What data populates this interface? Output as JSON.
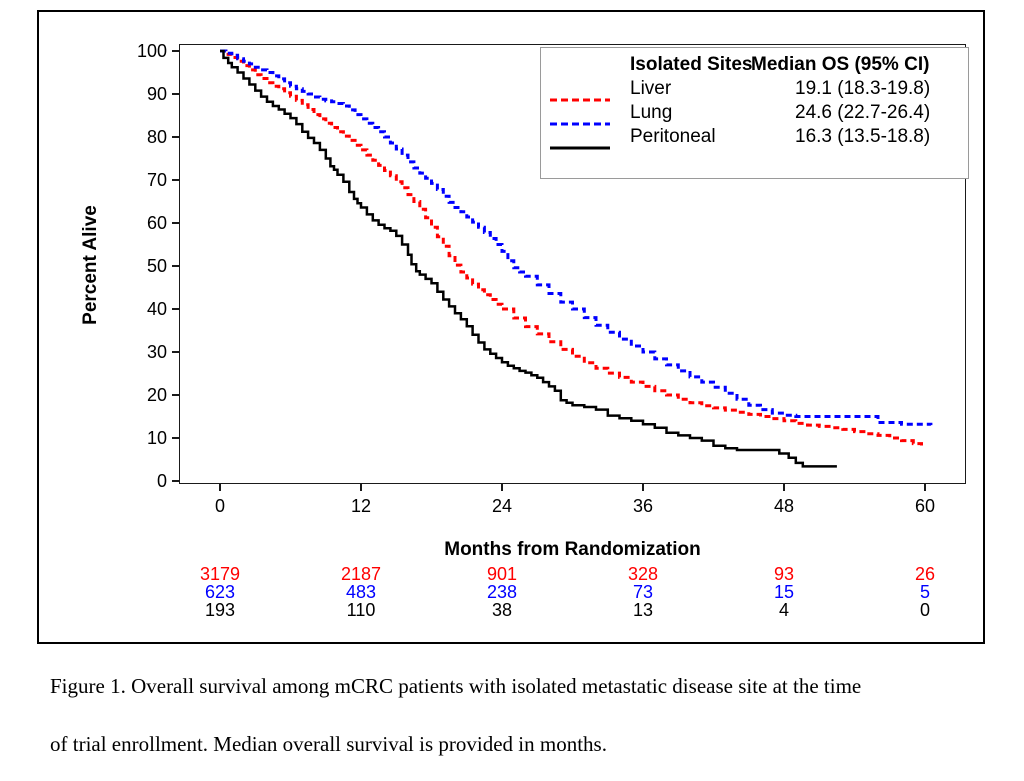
{
  "figure": {
    "y_axis_title": "Percent Alive",
    "x_axis_title": "Months from Randomization",
    "caption_line1": "Figure 1. Overall survival among mCRC patients with isolated metastatic disease site at the time",
    "caption_line2": "of trial enrollment. Median overall survival is provided in months."
  },
  "legend": {
    "col1_header": "Isolated Sites",
    "col2_header": "Median OS (95% CI)",
    "rows": [
      {
        "label": "Liver",
        "value": "19.1 (18.3-19.8)",
        "color": "#ff0000",
        "dash": "7,4"
      },
      {
        "label": "Lung",
        "value": "24.6 (22.7-26.4)",
        "color": "#0000ff",
        "dash": "7,4"
      },
      {
        "label": "Peritoneal",
        "value": "16.3 (13.5-18.8)",
        "color": "#000000",
        "dash": null
      }
    ]
  },
  "at_risk": {
    "rows": [
      {
        "group": "Liver",
        "color": "#ff0000",
        "values": [
          3179,
          2187,
          901,
          328,
          93,
          26
        ]
      },
      {
        "group": "Lung",
        "color": "#0000ff",
        "values": [
          623,
          483,
          238,
          73,
          15,
          5
        ]
      },
      {
        "group": "Peritoneal",
        "color": "#000000",
        "values": [
          193,
          110,
          38,
          13,
          4,
          0
        ]
      }
    ]
  },
  "chart_data": {
    "type": "line",
    "subtype": "kaplan-meier-step",
    "title": "",
    "xlabel": "Months from Randomization",
    "ylabel": "Percent Alive",
    "xlim": [
      0,
      60
    ],
    "ylim": [
      0,
      100
    ],
    "x_ticks": [
      0,
      12,
      24,
      36,
      48,
      60
    ],
    "y_ticks": [
      0,
      10,
      20,
      30,
      40,
      50,
      60,
      70,
      80,
      90,
      100
    ],
    "grid": false,
    "legend_position": "top-right",
    "series": [
      {
        "name": "Liver",
        "color": "#ff0000",
        "dash": "6,4",
        "stroke_width": 3,
        "median_os": 19.1,
        "ci_95": "18.3-19.8",
        "points": [
          [
            0,
            100
          ],
          [
            0.5,
            99.2
          ],
          [
            1,
            98.5
          ],
          [
            1.5,
            97.6
          ],
          [
            2,
            96.6
          ],
          [
            2.5,
            95.6
          ],
          [
            3,
            94.5
          ],
          [
            3.5,
            93.6
          ],
          [
            4,
            92.6
          ],
          [
            4.5,
            91.8
          ],
          [
            5,
            91.2
          ],
          [
            5.5,
            90.3
          ],
          [
            6,
            89.5
          ],
          [
            6.5,
            88.5
          ],
          [
            7,
            87.5
          ],
          [
            7.5,
            86.4
          ],
          [
            8,
            85.2
          ],
          [
            8.5,
            84.2
          ],
          [
            9,
            83.2
          ],
          [
            9.5,
            82.2
          ],
          [
            10,
            81.2
          ],
          [
            10.5,
            80.2
          ],
          [
            11,
            79.2
          ],
          [
            11.5,
            78.1
          ],
          [
            12,
            77
          ],
          [
            12.5,
            75.8
          ],
          [
            13,
            74.6
          ],
          [
            13.5,
            73.4
          ],
          [
            14,
            72.2
          ],
          [
            14.5,
            71
          ],
          [
            15,
            69.6
          ],
          [
            15.5,
            68.2
          ],
          [
            16,
            66.6
          ],
          [
            16.5,
            65
          ],
          [
            17,
            63.2
          ],
          [
            17.5,
            61.2
          ],
          [
            18,
            59
          ],
          [
            18.5,
            56.8
          ],
          [
            19,
            54.6
          ],
          [
            19.5,
            52.4
          ],
          [
            20,
            50.2
          ],
          [
            20.5,
            48.6
          ],
          [
            21,
            47.2
          ],
          [
            21.5,
            45.8
          ],
          [
            22,
            44.5
          ],
          [
            22.5,
            43.3
          ],
          [
            23,
            42.2
          ],
          [
            23.5,
            41.1
          ],
          [
            24,
            40
          ],
          [
            25,
            37.9
          ],
          [
            26,
            35.9
          ],
          [
            27,
            34.2
          ],
          [
            28,
            32.4
          ],
          [
            29,
            30.6
          ],
          [
            30,
            29
          ],
          [
            31,
            27.5
          ],
          [
            32,
            26.2
          ],
          [
            33,
            25.1
          ],
          [
            34,
            24.1
          ],
          [
            35,
            23
          ],
          [
            36,
            22
          ],
          [
            37,
            21
          ],
          [
            38,
            20
          ],
          [
            39,
            19
          ],
          [
            40,
            18.2
          ],
          [
            41,
            17.5
          ],
          [
            42,
            17
          ],
          [
            43,
            16.5
          ],
          [
            44,
            16
          ],
          [
            45,
            15.5
          ],
          [
            46,
            15
          ],
          [
            47,
            14.5
          ],
          [
            48,
            14
          ],
          [
            49,
            13.4
          ],
          [
            50,
            13
          ],
          [
            51,
            12.7
          ],
          [
            52,
            12.4
          ],
          [
            53,
            12
          ],
          [
            54,
            11.5
          ],
          [
            55,
            11
          ],
          [
            56,
            10.6
          ],
          [
            57,
            10
          ],
          [
            58,
            9.4
          ],
          [
            59,
            8.7
          ],
          [
            59.7,
            8.2
          ]
        ]
      },
      {
        "name": "Lung",
        "color": "#0000ff",
        "dash": "6,4",
        "stroke_width": 3,
        "median_os": 24.6,
        "ci_95": "22.7-26.4",
        "points": [
          [
            0,
            100
          ],
          [
            0.5,
            99.5
          ],
          [
            1,
            99
          ],
          [
            1.5,
            98.2
          ],
          [
            2,
            97.6
          ],
          [
            2.5,
            97
          ],
          [
            3,
            96.2
          ],
          [
            3.5,
            95.6
          ],
          [
            4,
            95
          ],
          [
            4.5,
            94.2
          ],
          [
            5,
            93.5
          ],
          [
            5.5,
            92.6
          ],
          [
            6,
            91.8
          ],
          [
            6.5,
            91.2
          ],
          [
            7,
            90.6
          ],
          [
            7.5,
            90
          ],
          [
            8,
            89.3
          ],
          [
            8.5,
            88.8
          ],
          [
            9,
            88.4
          ],
          [
            9.5,
            88.2
          ],
          [
            10,
            87.8
          ],
          [
            10.5,
            87.2
          ],
          [
            11,
            86.3
          ],
          [
            11.5,
            85.2
          ],
          [
            12,
            84.2
          ],
          [
            12.5,
            83.2
          ],
          [
            13,
            82.2
          ],
          [
            13.5,
            81.2
          ],
          [
            14,
            80
          ],
          [
            14.5,
            78.6
          ],
          [
            15,
            77.2
          ],
          [
            15.5,
            75.8
          ],
          [
            16,
            74.2
          ],
          [
            16.5,
            72.8
          ],
          [
            17,
            71.6
          ],
          [
            17.5,
            70.4
          ],
          [
            18,
            69.2
          ],
          [
            18.5,
            67.8
          ],
          [
            19,
            66.2
          ],
          [
            19.5,
            64.8
          ],
          [
            20,
            63.6
          ],
          [
            20.5,
            62.6
          ],
          [
            21,
            61.4
          ],
          [
            21.5,
            60.2
          ],
          [
            22,
            59
          ],
          [
            22.5,
            57.8
          ],
          [
            23,
            56.4
          ],
          [
            23.5,
            55
          ],
          [
            24,
            53.4
          ],
          [
            24.5,
            51.2
          ],
          [
            25,
            49.6
          ],
          [
            25.5,
            48.6
          ],
          [
            26,
            47.6
          ],
          [
            27,
            45.6
          ],
          [
            28,
            43.6
          ],
          [
            29,
            41.6
          ],
          [
            30,
            40
          ],
          [
            31,
            38
          ],
          [
            32,
            36.2
          ],
          [
            33,
            34.6
          ],
          [
            34,
            33
          ],
          [
            35,
            31.4
          ],
          [
            36,
            30
          ],
          [
            37,
            28.4
          ],
          [
            38,
            27
          ],
          [
            39,
            25.6
          ],
          [
            40,
            24.2
          ],
          [
            41,
            23
          ],
          [
            42,
            21.8
          ],
          [
            43,
            20.4
          ],
          [
            44,
            19
          ],
          [
            45,
            17.6
          ],
          [
            46,
            16.6
          ],
          [
            47,
            15.8
          ],
          [
            48,
            15.3
          ],
          [
            49,
            15
          ],
          [
            55.5,
            15
          ],
          [
            56,
            13.6
          ],
          [
            58,
            13.2
          ],
          [
            60.5,
            13
          ]
        ]
      },
      {
        "name": "Peritoneal",
        "color": "#000000",
        "dash": null,
        "stroke_width": 2.5,
        "median_os": 16.3,
        "ci_95": "13.5-18.8",
        "points": [
          [
            0,
            100
          ],
          [
            0.3,
            98.4
          ],
          [
            0.7,
            97.2
          ],
          [
            1,
            96.2
          ],
          [
            1.5,
            95
          ],
          [
            2,
            93.6
          ],
          [
            2.5,
            92.2
          ],
          [
            3,
            90.8
          ],
          [
            3.5,
            89.4
          ],
          [
            4,
            88.2
          ],
          [
            4.5,
            87.2
          ],
          [
            5,
            86.4
          ],
          [
            5.5,
            85.4
          ],
          [
            6,
            84.4
          ],
          [
            6.5,
            83
          ],
          [
            7,
            81.2
          ],
          [
            7.5,
            79.8
          ],
          [
            8,
            78.6
          ],
          [
            8.5,
            77
          ],
          [
            9,
            75
          ],
          [
            9.4,
            73.2
          ],
          [
            9.7,
            72.4
          ],
          [
            10,
            71.2
          ],
          [
            10.5,
            69.6
          ],
          [
            11,
            67.2
          ],
          [
            11.4,
            65.6
          ],
          [
            11.7,
            64.6
          ],
          [
            12,
            63.6
          ],
          [
            12.5,
            62
          ],
          [
            13,
            60.6
          ],
          [
            13.5,
            59.6
          ],
          [
            14,
            58.8
          ],
          [
            14.5,
            58.2
          ],
          [
            15,
            57
          ],
          [
            15.5,
            55
          ],
          [
            16,
            52.6
          ],
          [
            16.3,
            50.4
          ],
          [
            16.7,
            48.8
          ],
          [
            17,
            48
          ],
          [
            17.5,
            47
          ],
          [
            18,
            46
          ],
          [
            18.5,
            44
          ],
          [
            19,
            42.2
          ],
          [
            19.5,
            40.6
          ],
          [
            20,
            39
          ],
          [
            20.5,
            37.6
          ],
          [
            21,
            36
          ],
          [
            21.5,
            34
          ],
          [
            22,
            32.2
          ],
          [
            22.5,
            30.6
          ],
          [
            23,
            29.6
          ],
          [
            23.5,
            28.6
          ],
          [
            24,
            27.6
          ],
          [
            24.5,
            26.8
          ],
          [
            25,
            26.2
          ],
          [
            25.5,
            25.6
          ],
          [
            26,
            25.2
          ],
          [
            26.5,
            24.6
          ],
          [
            27,
            24
          ],
          [
            27.5,
            23
          ],
          [
            28,
            22
          ],
          [
            28.5,
            21
          ],
          [
            29,
            18.8
          ],
          [
            29.5,
            18.2
          ],
          [
            30,
            17.6
          ],
          [
            31,
            17.2
          ],
          [
            32,
            16.6
          ],
          [
            33,
            15.2
          ],
          [
            34,
            14.6
          ],
          [
            35,
            14
          ],
          [
            36,
            13.2
          ],
          [
            37,
            12.4
          ],
          [
            38,
            11.2
          ],
          [
            39,
            10.6
          ],
          [
            40,
            10
          ],
          [
            41,
            9.4
          ],
          [
            42,
            8.2
          ],
          [
            43,
            7.6
          ],
          [
            44,
            7.2
          ],
          [
            47,
            7.2
          ],
          [
            47.6,
            6.4
          ],
          [
            48.4,
            5.4
          ],
          [
            49,
            4.2
          ],
          [
            49.6,
            3.4
          ],
          [
            52.5,
            3.4
          ]
        ]
      }
    ]
  }
}
